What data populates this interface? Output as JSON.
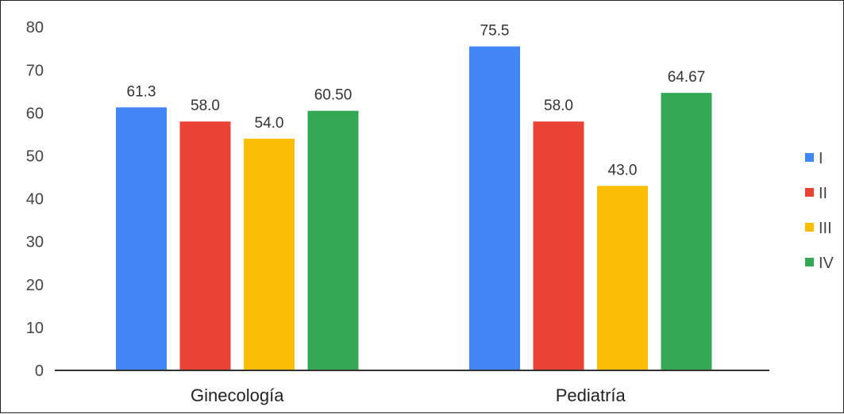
{
  "chart_data": {
    "type": "bar",
    "categories": [
      "Ginecología",
      "Pediatría"
    ],
    "series": [
      {
        "name": "I",
        "color": "#4285f4",
        "values": [
          61.3,
          75.5
        ],
        "labels": [
          "61.3",
          "75.5"
        ]
      },
      {
        "name": "II",
        "color": "#ea4335",
        "values": [
          58.0,
          58.0
        ],
        "labels": [
          "58.0",
          "58.0"
        ]
      },
      {
        "name": "III",
        "color": "#fbbc04",
        "values": [
          54.0,
          43.0
        ],
        "labels": [
          "54.0",
          "43.0"
        ]
      },
      {
        "name": "IV",
        "color": "#34a853",
        "values": [
          60.5,
          64.67
        ],
        "labels": [
          "60.50",
          "64.67"
        ]
      }
    ],
    "yticks": [
      "0",
      "10",
      "20",
      "30",
      "40",
      "50",
      "60",
      "70",
      "80"
    ],
    "ylim": [
      0,
      80
    ],
    "grid": false,
    "legend_position": "right",
    "title": "",
    "xlabel": "",
    "ylabel": ""
  }
}
